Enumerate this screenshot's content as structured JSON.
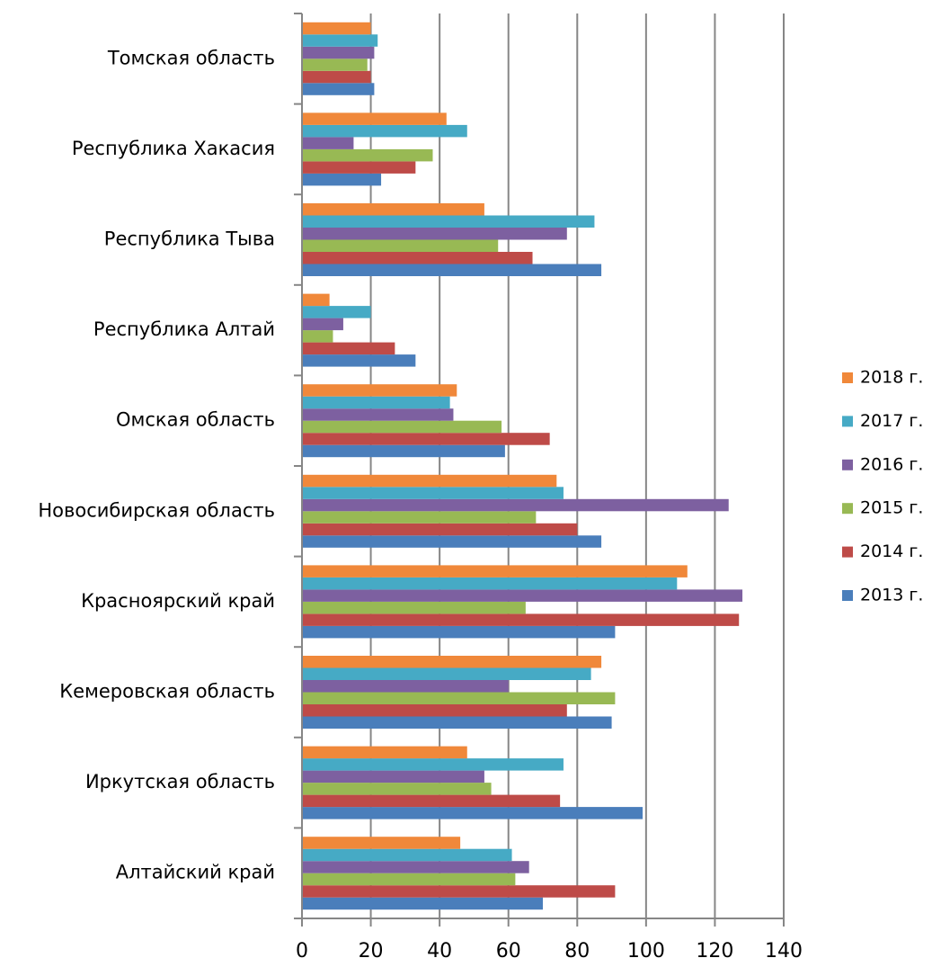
{
  "chart_data": {
    "type": "bar",
    "orientation": "horizontal",
    "categories": [
      "Томская область",
      "Республика Хакасия",
      "Республика Тыва",
      "Республика Алтай",
      "Омская область",
      "Новосибирская область",
      "Красноярский край",
      "Кемеровская область",
      "Иркутская область",
      "Алтайский край"
    ],
    "series": [
      {
        "name": "2013 г.",
        "color": "#4a7ebb",
        "values": [
          21,
          23,
          87,
          33,
          59,
          87,
          91,
          90,
          99,
          70
        ]
      },
      {
        "name": "2014 г.",
        "color": "#be4b48",
        "values": [
          20,
          33,
          67,
          27,
          72,
          80,
          127,
          77,
          75,
          91
        ]
      },
      {
        "name": "2015 г.",
        "color": "#98b954",
        "values": [
          19,
          38,
          57,
          9,
          58,
          68,
          65,
          91,
          55,
          62
        ]
      },
      {
        "name": "2016 г.",
        "color": "#7d60a0",
        "values": [
          21,
          15,
          77,
          12,
          44,
          124,
          128,
          60,
          53,
          66
        ]
      },
      {
        "name": "2017 г.",
        "color": "#46aac5",
        "values": [
          22,
          48,
          85,
          20,
          43,
          76,
          109,
          84,
          76,
          61
        ]
      },
      {
        "name": "2018 г.",
        "color": "#f0883a",
        "values": [
          20,
          42,
          53,
          8,
          45,
          74,
          112,
          87,
          48,
          46
        ]
      }
    ],
    "xlim": [
      0,
      140
    ],
    "xticks": [
      0,
      20,
      40,
      60,
      80,
      100,
      120,
      140
    ],
    "grid": true,
    "legend": "right"
  }
}
